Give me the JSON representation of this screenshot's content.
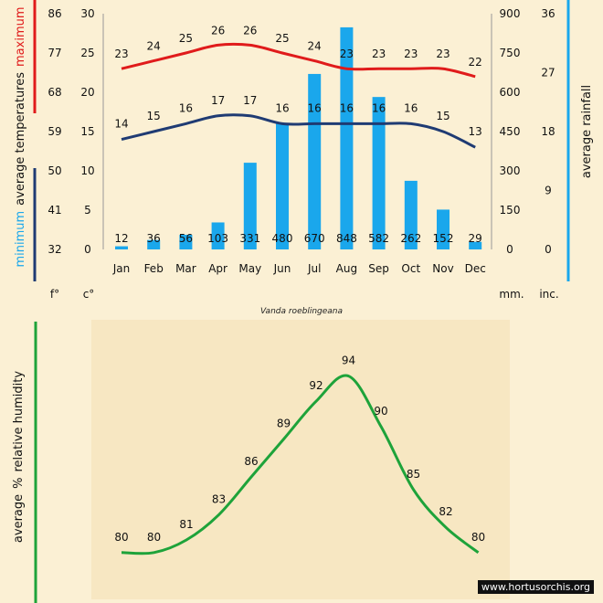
{
  "caption": "Vanda roeblingeana",
  "watermark": "www.hortusorchis.org",
  "colors": {
    "background": "#fbf0d4",
    "humidity_background": "#f7e7c2",
    "max_line": "#e01b1b",
    "min_line": "#1f3b73",
    "rain_bar": "#1aa7ec",
    "humidity_line": "#1ea33a"
  },
  "chart_data": [
    {
      "type": "bar",
      "title": "",
      "categories": [
        "Jan",
        "Feb",
        "Mar",
        "Apr",
        "May",
        "Jun",
        "Jul",
        "Aug",
        "Sep",
        "Oct",
        "Nov",
        "Dec"
      ],
      "series": [
        {
          "name": "maximum",
          "type": "line",
          "axis": "temperature",
          "values": [
            23,
            24,
            25,
            26,
            26,
            25,
            24,
            23,
            23,
            23,
            23,
            22
          ]
        },
        {
          "name": "minimum",
          "type": "line",
          "axis": "temperature",
          "values": [
            14,
            15,
            16,
            17,
            17,
            16,
            16,
            16,
            16,
            16,
            15,
            13
          ]
        },
        {
          "name": "average rainfall",
          "type": "bar",
          "axis": "rainfall",
          "values": [
            12,
            36,
            56,
            103,
            331,
            480,
            670,
            848,
            582,
            262,
            152,
            29
          ]
        }
      ],
      "axes": {
        "temp_f": {
          "unit": "f°",
          "ticks": [
            32,
            41,
            50,
            59,
            68,
            77,
            86
          ]
        },
        "temp_c": {
          "unit": "c°",
          "ylim": [
            0,
            30
          ],
          "ticks": [
            0,
            5,
            10,
            15,
            20,
            25,
            30
          ]
        },
        "rain_mm": {
          "unit": "mm.",
          "ylim": [
            0,
            900
          ],
          "ticks": [
            0,
            150,
            300,
            450,
            600,
            750,
            900
          ]
        },
        "rain_in": {
          "unit": "inc.",
          "ticks": [
            0,
            9,
            18,
            27,
            36
          ]
        }
      },
      "left_label": {
        "prefix": "average temperatures",
        "maximum": "maximum",
        "minimum": "minimum"
      },
      "right_label": "average rainfall",
      "grid": false
    },
    {
      "type": "line",
      "title": "",
      "ylabel_parts": [
        "average",
        "%",
        "relative humidity"
      ],
      "categories": [
        "Jan",
        "Feb",
        "Mar",
        "Apr",
        "May",
        "Jun",
        "Jul",
        "Aug",
        "Sep",
        "Oct",
        "Nov",
        "Dec"
      ],
      "series": [
        {
          "name": "",
          "values": [
            80,
            80,
            81,
            83,
            86,
            89,
            92,
            94,
            90,
            85,
            82,
            80
          ]
        }
      ],
      "ylim": [
        76,
        96
      ],
      "grid": false
    }
  ]
}
